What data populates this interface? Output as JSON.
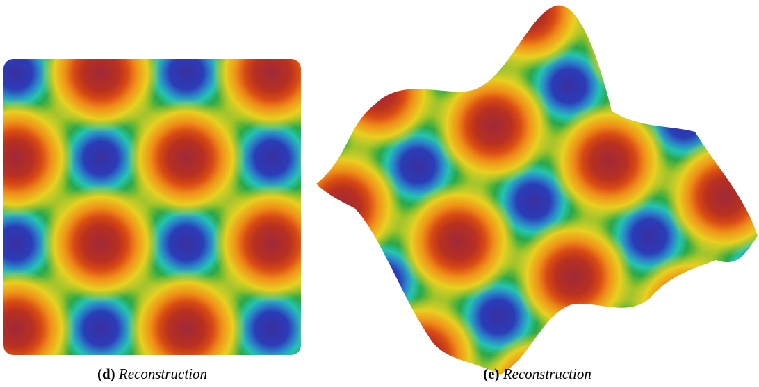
{
  "panels": [
    {
      "label": "(d)",
      "caption": "Reconstruction"
    },
    {
      "label": "(e)",
      "caption": "Reconstruction"
    }
  ]
}
